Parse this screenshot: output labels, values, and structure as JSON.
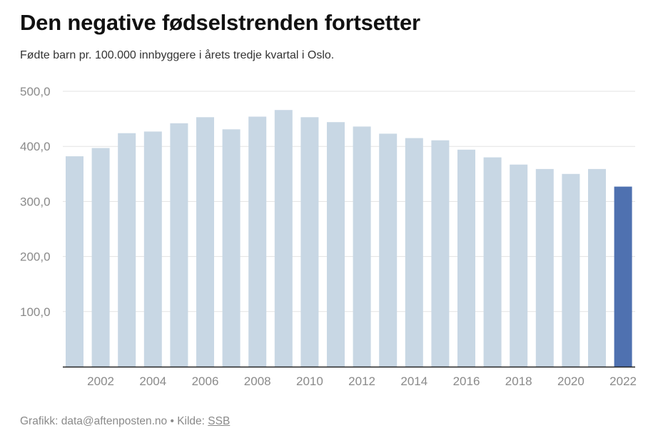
{
  "header": {
    "title": "Den negative fødselstrenden fortsetter",
    "subtitle": "Fødte barn pr. 100.000 innbyggere i årets tredje kvartal i Oslo."
  },
  "footer": {
    "prefix": "Grafikk: data@aftenposten.no • Kilde: ",
    "source_link": "SSB"
  },
  "colors": {
    "bar": "#c8d7e4",
    "highlight": "#4f71b0",
    "grid": "#e3e3e3",
    "axis": "#222222",
    "tick_text": "#8a8a8a"
  },
  "chart_data": {
    "type": "bar",
    "title": "Den negative fødselstrenden fortsetter",
    "subtitle": "Fødte barn pr. 100.000 innbyggere i årets tredje kvartal i Oslo.",
    "xlabel": "",
    "ylabel": "",
    "categories": [
      2001,
      2002,
      2003,
      2004,
      2005,
      2006,
      2007,
      2008,
      2009,
      2010,
      2011,
      2012,
      2013,
      2014,
      2015,
      2016,
      2017,
      2018,
      2019,
      2020,
      2021,
      2022
    ],
    "values": [
      382,
      397,
      424,
      427,
      442,
      453,
      431,
      454,
      466,
      453,
      444,
      436,
      423,
      415,
      411,
      394,
      380,
      367,
      359,
      350,
      359,
      327
    ],
    "highlight_category": 2022,
    "x_tick_labels": [
      "2002",
      "2004",
      "2006",
      "2008",
      "2010",
      "2012",
      "2014",
      "2016",
      "2018",
      "2020",
      "2022"
    ],
    "y_tick_labels": [
      "100,0",
      "200,0",
      "300,0",
      "400,0",
      "500,0"
    ],
    "y_ticks": [
      100,
      200,
      300,
      400,
      500
    ],
    "ylim": [
      0,
      500
    ],
    "grid": true,
    "legend": "none"
  }
}
